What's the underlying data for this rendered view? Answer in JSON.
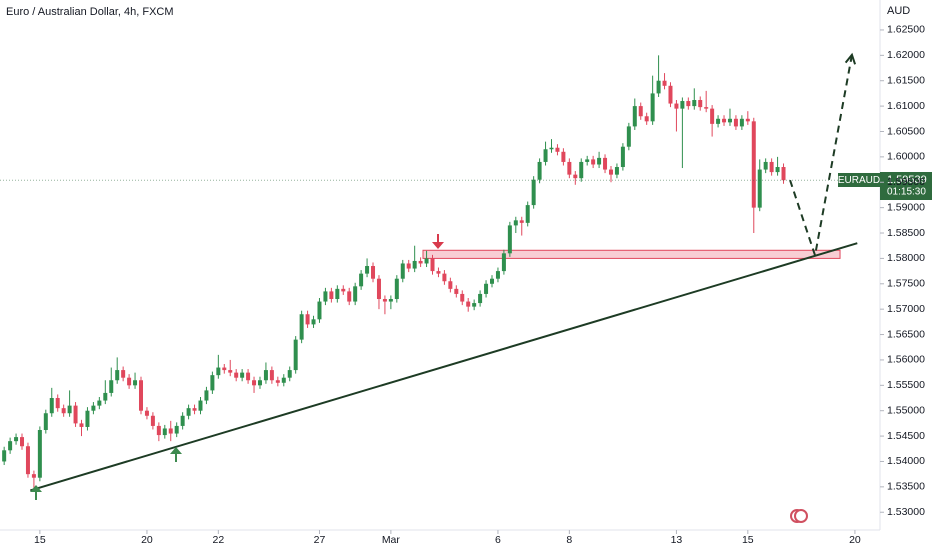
{
  "chart_data": {
    "type": "candlestick",
    "title": "Euro / Australian Dollar, 4h, FXCM",
    "currency": "AUD",
    "symbol": "EURAUD",
    "last_price": {
      "value": 1.59539,
      "label": "1.59539"
    },
    "countdown": "01:15:30",
    "up_color": "#2f8f4e",
    "down_color": "#e0475c",
    "xlim": [
      -0.7,
      145.2
    ],
    "xticks": [
      {
        "value": 6,
        "label": "15"
      },
      {
        "value": 24,
        "label": "20"
      },
      {
        "value": 36,
        "label": "22"
      },
      {
        "value": 53,
        "label": "27"
      },
      {
        "value": 65,
        "label": "Mar"
      },
      {
        "value": 83,
        "label": "6"
      },
      {
        "value": 95,
        "label": "8"
      },
      {
        "value": 113,
        "label": "13"
      },
      {
        "value": 125,
        "label": "15"
      },
      {
        "value": 143,
        "label": "20"
      }
    ],
    "ylim": [
      1.5265,
      1.6309
    ],
    "yticks": [
      {
        "value": 1.53,
        "label": "1.53000"
      },
      {
        "value": 1.535,
        "label": "1.53500"
      },
      {
        "value": 1.54,
        "label": "1.54000"
      },
      {
        "value": 1.545,
        "label": "1.54500"
      },
      {
        "value": 1.55,
        "label": "1.55000"
      },
      {
        "value": 1.555,
        "label": "1.55500"
      },
      {
        "value": 1.56,
        "label": "1.56000"
      },
      {
        "value": 1.565,
        "label": "1.56500"
      },
      {
        "value": 1.57,
        "label": "1.57000"
      },
      {
        "value": 1.575,
        "label": "1.57500"
      },
      {
        "value": 1.58,
        "label": "1.58000"
      },
      {
        "value": 1.585,
        "label": "1.58500"
      },
      {
        "value": 1.59,
        "label": "1.59000"
      },
      {
        "value": 1.595,
        "label": "1.59500"
      },
      {
        "value": 1.6,
        "label": "1.60000"
      },
      {
        "value": 1.605,
        "label": "1.60500"
      },
      {
        "value": 1.61,
        "label": "1.61000"
      },
      {
        "value": 1.615,
        "label": "1.61500"
      },
      {
        "value": 1.62,
        "label": "1.62000"
      },
      {
        "value": 1.625,
        "label": "1.62500"
      }
    ],
    "open": [
      1.54,
      1.5422,
      1.544,
      1.5448,
      1.543,
      1.5375,
      1.5368,
      1.5462,
      1.5495,
      1.5525,
      1.5505,
      1.5495,
      1.551,
      1.5475,
      1.5468,
      1.55,
      1.551,
      1.552,
      1.5535,
      1.556,
      1.558,
      1.5565,
      1.555,
      1.556,
      1.55,
      1.549,
      1.547,
      1.5452,
      1.5465,
      1.5455,
      1.547,
      1.549,
      1.5505,
      1.55,
      1.552,
      1.554,
      1.557,
      1.5585,
      1.558,
      1.5575,
      1.5565,
      1.5575,
      1.556,
      1.555,
      1.556,
      1.558,
      1.556,
      1.5555,
      1.5565,
      1.558,
      1.564,
      1.569,
      1.567,
      1.568,
      1.5715,
      1.5735,
      1.572,
      1.574,
      1.5735,
      1.5715,
      1.5745,
      1.577,
      1.5785,
      1.576,
      1.572,
      1.5715,
      1.572,
      1.576,
      1.579,
      1.578,
      1.5795,
      1.579,
      1.58,
      1.5775,
      1.577,
      1.5755,
      1.574,
      1.573,
      1.5715,
      1.5705,
      1.5712,
      1.573,
      1.575,
      1.576,
      1.5775,
      1.581,
      1.5865,
      1.5875,
      1.587,
      1.5905,
      1.5955,
      1.599,
      1.6015,
      1.6018,
      1.601,
      1.599,
      1.5965,
      1.5958,
      1.599,
      1.5995,
      1.5985,
      1.5998,
      1.5975,
      1.5965,
      1.598,
      1.602,
      1.606,
      1.61,
      1.608,
      1.607,
      1.6125,
      1.615,
      1.614,
      1.6105,
      1.6095,
      1.611,
      1.61,
      1.6112,
      1.6098,
      1.6095,
      1.6065,
      1.6075,
      1.6068,
      1.6075,
      1.606,
      1.6075,
      1.607,
      1.59,
      1.5975,
      1.599,
      1.597,
      1.598
    ],
    "high": [
      1.5429,
      1.5447,
      1.5455,
      1.5455,
      1.5437,
      1.5382,
      1.5469,
      1.5502,
      1.5545,
      1.5532,
      1.5512,
      1.554,
      1.5517,
      1.5482,
      1.5507,
      1.5517,
      1.5527,
      1.556,
      1.5585,
      1.5605,
      1.5587,
      1.5572,
      1.5575,
      1.5567,
      1.5507,
      1.5497,
      1.5477,
      1.5472,
      1.548,
      1.5477,
      1.5497,
      1.5512,
      1.5512,
      1.5527,
      1.5547,
      1.5577,
      1.561,
      1.5592,
      1.56,
      1.5582,
      1.5582,
      1.5582,
      1.5567,
      1.5567,
      1.5595,
      1.5587,
      1.5567,
      1.5572,
      1.5587,
      1.5647,
      1.5697,
      1.5697,
      1.5687,
      1.5722,
      1.5742,
      1.5742,
      1.5747,
      1.5747,
      1.5742,
      1.5752,
      1.5777,
      1.58,
      1.5792,
      1.5767,
      1.5727,
      1.5727,
      1.5767,
      1.5797,
      1.5797,
      1.5825,
      1.5802,
      1.5815,
      1.5807,
      1.5782,
      1.5777,
      1.5762,
      1.5747,
      1.5737,
      1.5722,
      1.5719,
      1.5737,
      1.5757,
      1.5767,
      1.5782,
      1.5817,
      1.5872,
      1.5882,
      1.5882,
      1.5912,
      1.5962,
      1.5997,
      1.603,
      1.6035,
      1.6025,
      1.6017,
      1.5997,
      1.5972,
      1.5997,
      1.6002,
      1.6002,
      1.601,
      1.6005,
      1.5982,
      1.5987,
      1.6027,
      1.6067,
      1.6115,
      1.6107,
      1.6087,
      1.616,
      1.62,
      1.6165,
      1.6147,
      1.6112,
      1.6117,
      1.6117,
      1.6135,
      1.6119,
      1.613,
      1.6102,
      1.6082,
      1.6082,
      1.6095,
      1.6082,
      1.6082,
      1.609,
      1.6077,
      1.5995,
      1.5997,
      1.5997,
      1.6,
      1.5987
    ],
    "low": [
      1.5393,
      1.5415,
      1.5433,
      1.5423,
      1.5368,
      1.5345,
      1.5361,
      1.5455,
      1.5488,
      1.5498,
      1.5488,
      1.5488,
      1.5468,
      1.545,
      1.5461,
      1.5493,
      1.5503,
      1.5513,
      1.5528,
      1.5553,
      1.5558,
      1.5543,
      1.5543,
      1.5493,
      1.5483,
      1.5463,
      1.544,
      1.5445,
      1.544,
      1.5448,
      1.5463,
      1.5483,
      1.5493,
      1.5493,
      1.5513,
      1.5533,
      1.5563,
      1.5573,
      1.5568,
      1.5558,
      1.5558,
      1.5553,
      1.5535,
      1.5543,
      1.5553,
      1.5553,
      1.5548,
      1.5548,
      1.5558,
      1.5573,
      1.5633,
      1.5663,
      1.5663,
      1.5673,
      1.5708,
      1.5713,
      1.5713,
      1.5728,
      1.5708,
      1.5708,
      1.5738,
      1.5763,
      1.5753,
      1.57,
      1.569,
      1.57,
      1.5713,
      1.5753,
      1.5773,
      1.5773,
      1.5783,
      1.5783,
      1.5768,
      1.5763,
      1.5748,
      1.5733,
      1.5723,
      1.5708,
      1.5695,
      1.5698,
      1.5705,
      1.5723,
      1.5743,
      1.5753,
      1.5768,
      1.5803,
      1.585,
      1.5845,
      1.5863,
      1.5898,
      1.5948,
      1.5983,
      1.6008,
      1.6003,
      1.5983,
      1.5958,
      1.5945,
      1.5951,
      1.5983,
      1.5978,
      1.5978,
      1.5968,
      1.595,
      1.5958,
      1.5973,
      1.6013,
      1.6053,
      1.6073,
      1.6063,
      1.6063,
      1.6118,
      1.6133,
      1.6098,
      1.605,
      1.5978,
      1.6093,
      1.6093,
      1.6091,
      1.6088,
      1.604,
      1.6058,
      1.6061,
      1.6061,
      1.6053,
      1.6053,
      1.6063,
      1.585,
      1.5893,
      1.5968,
      1.5963,
      1.5963,
      1.5947
    ],
    "close": [
      1.5422,
      1.544,
      1.5448,
      1.543,
      1.5375,
      1.5368,
      1.5462,
      1.5495,
      1.5525,
      1.5505,
      1.5495,
      1.551,
      1.5475,
      1.5468,
      1.55,
      1.551,
      1.552,
      1.5535,
      1.556,
      1.558,
      1.5565,
      1.555,
      1.556,
      1.55,
      1.549,
      1.547,
      1.5452,
      1.5465,
      1.5455,
      1.547,
      1.549,
      1.5505,
      1.55,
      1.552,
      1.554,
      1.557,
      1.5585,
      1.558,
      1.5575,
      1.5565,
      1.5575,
      1.556,
      1.555,
      1.556,
      1.558,
      1.556,
      1.5555,
      1.5565,
      1.558,
      1.564,
      1.569,
      1.567,
      1.568,
      1.5715,
      1.5735,
      1.572,
      1.574,
      1.5735,
      1.5715,
      1.5745,
      1.577,
      1.5785,
      1.576,
      1.572,
      1.5715,
      1.572,
      1.576,
      1.579,
      1.578,
      1.5795,
      1.579,
      1.58,
      1.5775,
      1.577,
      1.5755,
      1.574,
      1.573,
      1.5715,
      1.5705,
      1.5712,
      1.573,
      1.575,
      1.576,
      1.5775,
      1.581,
      1.5865,
      1.5875,
      1.587,
      1.5905,
      1.5955,
      1.599,
      1.6015,
      1.6018,
      1.601,
      1.599,
      1.5965,
      1.5958,
      1.599,
      1.5995,
      1.5985,
      1.5998,
      1.5975,
      1.5965,
      1.598,
      1.602,
      1.606,
      1.61,
      1.608,
      1.607,
      1.6125,
      1.615,
      1.614,
      1.6105,
      1.6095,
      1.611,
      1.61,
      1.6112,
      1.6098,
      1.6095,
      1.6065,
      1.6075,
      1.6068,
      1.6075,
      1.606,
      1.6075,
      1.607,
      1.59,
      1.5975,
      1.599,
      1.597,
      1.598,
      1.5954
    ],
    "trendline": {
      "x": [
        4.4,
        143.4
      ],
      "y": [
        1.5343,
        1.583
      ]
    },
    "zone": {
      "x": [
        70.4,
        140.5
      ],
      "y": [
        1.58,
        1.5816
      ]
    },
    "projection": {
      "x": [
        132.1,
        136.3,
        142.5
      ],
      "y": [
        1.5954,
        1.5806,
        1.6201
      ]
    }
  }
}
